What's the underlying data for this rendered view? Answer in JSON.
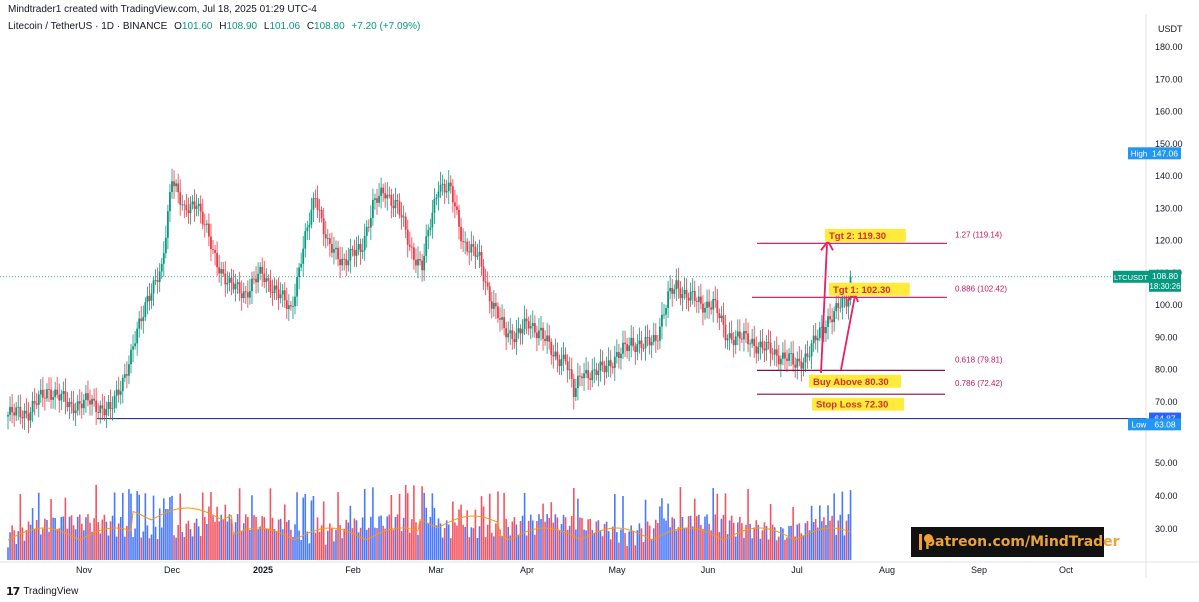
{
  "header": {
    "author_line": "Mindtrader1 created with TradingView.com, Jul 18, 2025 01:29 UTC-4",
    "symbol_line": "Litecoin / TetherUS · 1D · BINANCE",
    "ohlc": [
      {
        "label": "O",
        "value": "101.60"
      },
      {
        "label": "H",
        "value": "108.90"
      },
      {
        "label": "L",
        "value": "101.06"
      },
      {
        "label": "C",
        "value": "108.80"
      },
      {
        "label": "",
        "value": "+7.20 (+7.09%)"
      }
    ]
  },
  "currency": "USDT",
  "branding": {
    "logo_text": "TradingView",
    "logo_mark": "17",
    "patreon": "patreon.com/MindTrader"
  },
  "colors": {
    "up": "#089981",
    "down": "#f23645",
    "vol_up": "#2962ff",
    "vol_down": "#f23645",
    "ma": "#ff9800",
    "level_line": "#2d3a8c",
    "fib_line": "#e91e63",
    "fib_text": "#c2185b",
    "badge_bg": "#ffeb3b",
    "badge_text": "#d32f2f"
  },
  "chart_data": {
    "type": "candlestick",
    "price_axis": {
      "range": [
        60,
        185
      ],
      "ticks": [
        "180.00",
        "170.00",
        "160.00",
        "150.00",
        "140.00",
        "130.00",
        "120.00",
        "110.00",
        "100.00",
        "90.00",
        "80.00",
        "70.00"
      ]
    },
    "volume_axis": {
      "ticks": [
        "50.00",
        "40.00",
        "30.00"
      ]
    },
    "time_axis": {
      "labels": [
        "Nov",
        "Dec",
        "2025",
        "Feb",
        "Mar",
        "Apr",
        "May",
        "Jun",
        "Jul",
        "Aug",
        "Sep",
        "Oct"
      ]
    },
    "price_anchors": [
      [
        0,
        66
      ],
      [
        10,
        67
      ],
      [
        20,
        74
      ],
      [
        30,
        69
      ],
      [
        40,
        70
      ],
      [
        50,
        67
      ],
      [
        60,
        84
      ],
      [
        68,
        103
      ],
      [
        75,
        110
      ],
      [
        80,
        141
      ],
      [
        86,
        128
      ],
      [
        92,
        133
      ],
      [
        100,
        116
      ],
      [
        108,
        106
      ],
      [
        116,
        104
      ],
      [
        124,
        110
      ],
      [
        132,
        103
      ],
      [
        138,
        99
      ],
      [
        144,
        117
      ],
      [
        150,
        135
      ],
      [
        156,
        118
      ],
      [
        164,
        114
      ],
      [
        172,
        117
      ],
      [
        178,
        131
      ],
      [
        184,
        135
      ],
      [
        190,
        131
      ],
      [
        196,
        118
      ],
      [
        202,
        112
      ],
      [
        210,
        138
      ],
      [
        216,
        135
      ],
      [
        222,
        120
      ],
      [
        230,
        114
      ],
      [
        236,
        101
      ],
      [
        242,
        92
      ],
      [
        248,
        91
      ],
      [
        254,
        94
      ],
      [
        260,
        92
      ],
      [
        266,
        84
      ],
      [
        272,
        84
      ],
      [
        276,
        72
      ],
      [
        280,
        80
      ],
      [
        286,
        78
      ],
      [
        292,
        82
      ],
      [
        298,
        84
      ],
      [
        304,
        89
      ],
      [
        310,
        87
      ],
      [
        316,
        90
      ],
      [
        322,
        102
      ],
      [
        326,
        106
      ],
      [
        332,
        103
      ],
      [
        338,
        100
      ],
      [
        344,
        101
      ],
      [
        350,
        91
      ],
      [
        356,
        90
      ],
      [
        362,
        89
      ],
      [
        368,
        87
      ],
      [
        374,
        85
      ],
      [
        380,
        84
      ],
      [
        384,
        81
      ],
      [
        390,
        85
      ],
      [
        396,
        91
      ],
      [
        400,
        96
      ],
      [
        405,
        99
      ],
      [
        410,
        101.6
      ],
      [
        411,
        108.8
      ]
    ],
    "last_candle": {
      "open": 101.6,
      "high": 108.9,
      "low": 101.06,
      "close": 108.8
    },
    "key_levels": [
      {
        "name": "High",
        "price": 147.06
      },
      {
        "name": "Low",
        "price": 63.08
      },
      {
        "price": 64.87
      }
    ],
    "last_price": {
      "symbol": "LTCUSDT",
      "price": "108.80",
      "countdown": "18:30:26"
    },
    "fib_levels": [
      {
        "ratio": "1.27",
        "price": 119.14,
        "label": "1.27 (119.14)"
      },
      {
        "ratio": "0.886",
        "price": 102.42,
        "label": "0.886 (102.42)"
      },
      {
        "ratio": "0.618",
        "price": 79.81,
        "label": "0.618 (79.81)"
      },
      {
        "ratio": "0.786",
        "price": 72.42,
        "label": "0.786 (72.42)"
      }
    ],
    "annotations": [
      {
        "text": "Tgt 2: 119.30",
        "price": 119.3
      },
      {
        "text": "Tgt 1: 102.30",
        "price": 102.3
      },
      {
        "text": "Buy Above 80.30",
        "price": 80.3
      },
      {
        "text": "Stop Loss 72.30",
        "price": 72.3
      }
    ]
  }
}
